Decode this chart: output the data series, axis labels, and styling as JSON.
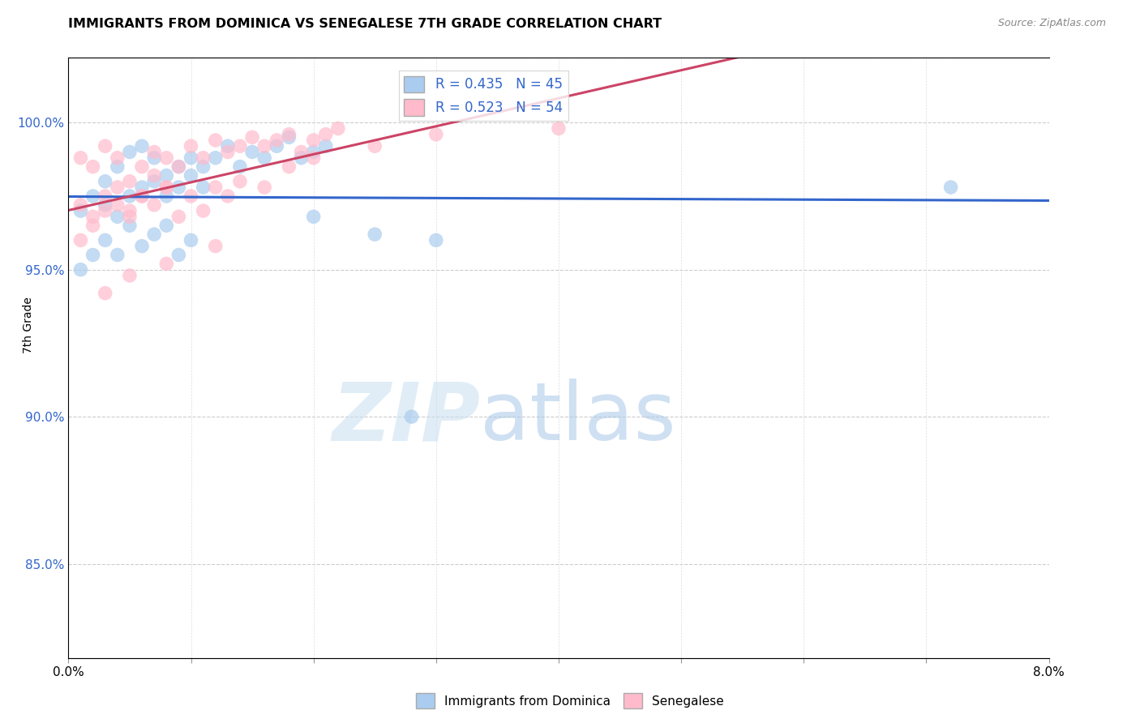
{
  "title": "IMMIGRANTS FROM DOMINICA VS SENEGALESE 7TH GRADE CORRELATION CHART",
  "source": "Source: ZipAtlas.com",
  "ylabel": "7th Grade",
  "y_ticks": [
    0.85,
    0.9,
    0.95,
    1.0
  ],
  "y_tick_labels": [
    "85.0%",
    "90.0%",
    "95.0%",
    "100.0%"
  ],
  "x_range": [
    0.0,
    0.08
  ],
  "y_range": [
    0.818,
    1.022
  ],
  "legend_label_immigrants": "Immigrants from Dominica",
  "legend_label_senegalese": "Senegalese",
  "blue_line_color": "#3366cc",
  "pink_line_color": "#cc4466",
  "blue_scatter_color": "#aaccee",
  "pink_scatter_color": "#ffbbcc",
  "watermark_zip": "ZIP",
  "watermark_atlas": "atlas",
  "blue_R": 0.435,
  "blue_N": 45,
  "pink_R": 0.523,
  "pink_N": 54,
  "blue_points_x": [
    0.001,
    0.002,
    0.003,
    0.003,
    0.004,
    0.004,
    0.005,
    0.005,
    0.006,
    0.006,
    0.007,
    0.007,
    0.008,
    0.008,
    0.009,
    0.009,
    0.01,
    0.01,
    0.011,
    0.011,
    0.012,
    0.013,
    0.014,
    0.015,
    0.016,
    0.017,
    0.018,
    0.019,
    0.02,
    0.021,
    0.001,
    0.002,
    0.003,
    0.004,
    0.005,
    0.006,
    0.007,
    0.008,
    0.009,
    0.01,
    0.02,
    0.025,
    0.072,
    0.028,
    0.03
  ],
  "blue_points_y": [
    0.97,
    0.975,
    0.972,
    0.98,
    0.968,
    0.985,
    0.975,
    0.99,
    0.978,
    0.992,
    0.98,
    0.988,
    0.975,
    0.982,
    0.978,
    0.985,
    0.982,
    0.988,
    0.985,
    0.978,
    0.988,
    0.992,
    0.985,
    0.99,
    0.988,
    0.992,
    0.995,
    0.988,
    0.99,
    0.992,
    0.95,
    0.955,
    0.96,
    0.955,
    0.965,
    0.958,
    0.962,
    0.965,
    0.955,
    0.96,
    0.968,
    0.962,
    0.978,
    0.9,
    0.96
  ],
  "pink_points_x": [
    0.001,
    0.001,
    0.002,
    0.002,
    0.003,
    0.003,
    0.004,
    0.004,
    0.005,
    0.005,
    0.006,
    0.006,
    0.007,
    0.007,
    0.008,
    0.008,
    0.009,
    0.01,
    0.011,
    0.012,
    0.013,
    0.014,
    0.015,
    0.016,
    0.017,
    0.018,
    0.019,
    0.02,
    0.021,
    0.022,
    0.001,
    0.002,
    0.003,
    0.004,
    0.005,
    0.006,
    0.007,
    0.008,
    0.009,
    0.01,
    0.011,
    0.012,
    0.013,
    0.014,
    0.016,
    0.018,
    0.02,
    0.025,
    0.03,
    0.04,
    0.003,
    0.005,
    0.008,
    0.012
  ],
  "pink_points_y": [
    0.988,
    0.972,
    0.985,
    0.968,
    0.992,
    0.975,
    0.988,
    0.978,
    0.98,
    0.97,
    0.985,
    0.975,
    0.99,
    0.982,
    0.988,
    0.978,
    0.985,
    0.992,
    0.988,
    0.994,
    0.99,
    0.992,
    0.995,
    0.992,
    0.994,
    0.996,
    0.99,
    0.994,
    0.996,
    0.998,
    0.96,
    0.965,
    0.97,
    0.972,
    0.968,
    0.975,
    0.972,
    0.978,
    0.968,
    0.975,
    0.97,
    0.978,
    0.975,
    0.98,
    0.978,
    0.985,
    0.988,
    0.992,
    0.996,
    0.998,
    0.942,
    0.948,
    0.952,
    0.958
  ]
}
